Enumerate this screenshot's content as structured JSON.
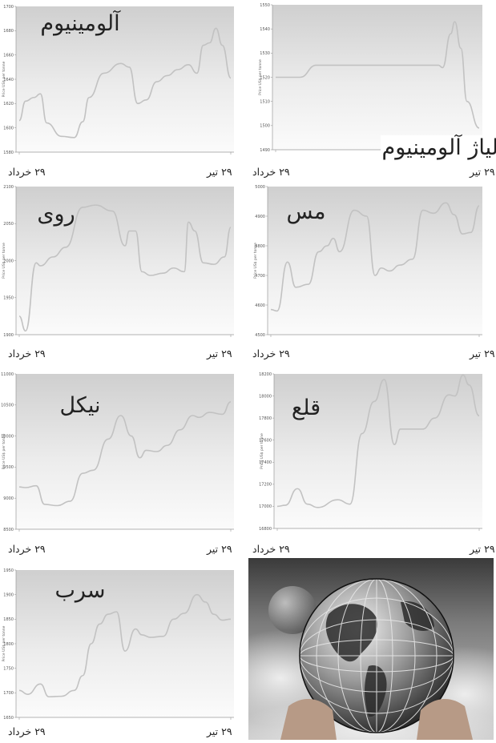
{
  "dates": {
    "start": "۲۹ خرداد",
    "end": "۲۹ تیر"
  },
  "line_color": "#c2c2c2",
  "ylabel": "Price US$ per tonne",
  "chart_data": [
    {
      "type": "line",
      "title": "آلومینیوم",
      "ylabel": "Price US$ per tonne",
      "ylim": [
        1580,
        1700
      ],
      "yticks": [
        "1580",
        "1600",
        "1620",
        "1640",
        "1660",
        "1680",
        "1700"
      ],
      "x": [
        0,
        0.03,
        0.07,
        0.1,
        0.13,
        0.2,
        0.26,
        0.3,
        0.33,
        0.4,
        0.48,
        0.52,
        0.56,
        0.6,
        0.65,
        0.7,
        0.75,
        0.8,
        0.84,
        0.87,
        0.9,
        0.93,
        0.96,
        1
      ],
      "values": [
        1606,
        1622,
        1625,
        1628,
        1604,
        1593,
        1592,
        1605,
        1625,
        1645,
        1653,
        1650,
        1620,
        1623,
        1638,
        1643,
        1648,
        1652,
        1645,
        1668,
        1670,
        1682,
        1668,
        1641
      ]
    },
    {
      "type": "line",
      "title": "آلیاژ آلومینیوم",
      "ylabel": "Price US$ per tonne",
      "ylim": [
        1490,
        1550
      ],
      "yticks": [
        "1490",
        "1500",
        "1510",
        "1520",
        "1530",
        "1540",
        "1550"
      ],
      "x": [
        0,
        0.1,
        0.12,
        0.2,
        0.5,
        0.8,
        0.82,
        0.86,
        0.88,
        0.91,
        0.94,
        1
      ],
      "values": [
        1520,
        1520,
        1520,
        1525,
        1525,
        1525,
        1524,
        1538,
        1543,
        1532,
        1510,
        1499
      ]
    },
    {
      "type": "line",
      "title": "روی",
      "ylabel": "Price US$ per tonne",
      "ylim": [
        1900,
        2100
      ],
      "yticks": [
        "1900",
        "1950",
        "2000",
        "2050",
        "2100"
      ],
      "x": [
        0,
        0.03,
        0.08,
        0.1,
        0.16,
        0.22,
        0.3,
        0.36,
        0.44,
        0.5,
        0.52,
        0.55,
        0.58,
        0.62,
        0.68,
        0.73,
        0.78,
        0.8,
        0.83,
        0.87,
        0.92,
        0.97,
        1
      ],
      "values": [
        1925,
        1905,
        1997,
        1993,
        2005,
        2018,
        2072,
        2075,
        2067,
        2020,
        2040,
        2040,
        1985,
        1980,
        1983,
        1990,
        1985,
        2052,
        2040,
        1997,
        1995,
        2005,
        2045
      ]
    },
    {
      "type": "line",
      "title": "مس",
      "ylabel": "Price US$ per tonne",
      "ylim": [
        4500,
        5000
      ],
      "yticks": [
        "4500",
        "4600",
        "4700",
        "4800",
        "4900",
        "5000"
      ],
      "x": [
        0,
        0.03,
        0.08,
        0.12,
        0.18,
        0.23,
        0.27,
        0.3,
        0.33,
        0.4,
        0.46,
        0.5,
        0.53,
        0.57,
        0.62,
        0.68,
        0.73,
        0.78,
        0.84,
        0.88,
        0.92,
        0.96,
        1
      ],
      "values": [
        4585,
        4580,
        4745,
        4660,
        4670,
        4780,
        4800,
        4825,
        4780,
        4920,
        4900,
        4700,
        4725,
        4715,
        4735,
        4755,
        4920,
        4910,
        4945,
        4905,
        4840,
        4845,
        4935
      ]
    },
    {
      "type": "line",
      "title": "نیکل",
      "ylabel": "Price US$ per tonne",
      "ylim": [
        8500,
        11000
      ],
      "yticks": [
        "8500",
        "9000",
        "9500",
        "10000",
        "10500",
        "11000"
      ],
      "x": [
        0,
        0.03,
        0.08,
        0.12,
        0.18,
        0.24,
        0.3,
        0.35,
        0.42,
        0.48,
        0.53,
        0.57,
        0.6,
        0.65,
        0.7,
        0.76,
        0.82,
        0.85,
        0.9,
        0.96,
        1
      ],
      "values": [
        9180,
        9170,
        9200,
        8900,
        8880,
        8950,
        9400,
        9450,
        9950,
        10330,
        10000,
        9650,
        9770,
        9750,
        9850,
        10100,
        10330,
        10300,
        10380,
        10350,
        10550
      ]
    },
    {
      "type": "line",
      "title": "قلع",
      "ylabel": "Price US$ per tonne",
      "ylim": [
        16800,
        18200
      ],
      "yticks": [
        "16800",
        "17000",
        "17200",
        "17400",
        "17600",
        "17800",
        "18000",
        "18200"
      ],
      "x": [
        0,
        0.04,
        0.1,
        0.15,
        0.2,
        0.3,
        0.36,
        0.42,
        0.48,
        0.53,
        0.58,
        0.61,
        0.66,
        0.72,
        0.78,
        0.85,
        0.88,
        0.92,
        0.95,
        1
      ],
      "values": [
        17000,
        17010,
        17160,
        17020,
        16990,
        17060,
        17020,
        17660,
        17950,
        18150,
        17560,
        17700,
        17700,
        17700,
        17800,
        18010,
        18000,
        18190,
        18100,
        17820
      ]
    },
    {
      "type": "line",
      "title": "سرب",
      "ylabel": "Price US$ per tonne",
      "ylim": [
        1650,
        1950
      ],
      "yticks": [
        "1650",
        "1700",
        "1750",
        "1800",
        "1850",
        "1900",
        "1950"
      ],
      "x": [
        0,
        0.04,
        0.1,
        0.14,
        0.2,
        0.26,
        0.3,
        0.34,
        0.38,
        0.42,
        0.46,
        0.5,
        0.55,
        0.58,
        0.62,
        0.68,
        0.73,
        0.78,
        0.84,
        0.88,
        0.92,
        0.96,
        1
      ],
      "values": [
        1705,
        1697,
        1718,
        1692,
        1693,
        1705,
        1735,
        1800,
        1840,
        1860,
        1865,
        1785,
        1830,
        1818,
        1813,
        1815,
        1850,
        1862,
        1900,
        1885,
        1860,
        1848,
        1850
      ]
    }
  ]
}
